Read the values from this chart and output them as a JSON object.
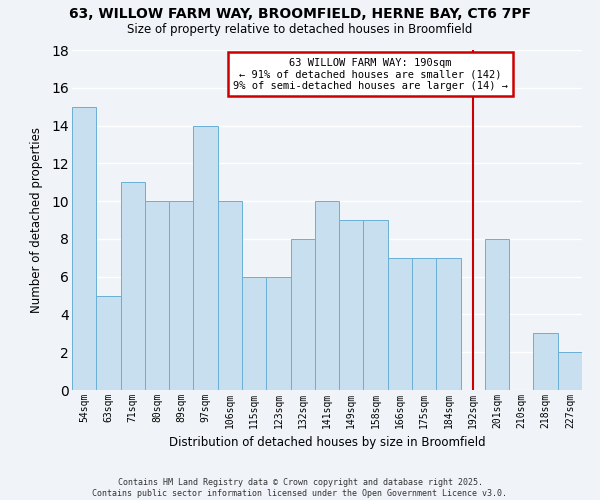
{
  "title_line1": "63, WILLOW FARM WAY, BROOMFIELD, HERNE BAY, CT6 7PF",
  "title_line2": "Size of property relative to detached houses in Broomfield",
  "xlabel": "Distribution of detached houses by size in Broomfield",
  "ylabel": "Number of detached properties",
  "bin_labels": [
    "54sqm",
    "63sqm",
    "71sqm",
    "80sqm",
    "89sqm",
    "97sqm",
    "106sqm",
    "115sqm",
    "123sqm",
    "132sqm",
    "141sqm",
    "149sqm",
    "158sqm",
    "166sqm",
    "175sqm",
    "184sqm",
    "192sqm",
    "201sqm",
    "210sqm",
    "218sqm",
    "227sqm"
  ],
  "bar_heights": [
    15,
    5,
    11,
    10,
    10,
    14,
    10,
    6,
    6,
    8,
    10,
    9,
    9,
    7,
    7,
    7,
    0,
    8,
    0,
    3,
    2
  ],
  "bar_color": "#c8dff0",
  "bar_edge_color": "#6aafd6",
  "ylim": [
    0,
    18
  ],
  "yticks": [
    0,
    2,
    4,
    6,
    8,
    10,
    12,
    14,
    16,
    18
  ],
  "annotation_title": "63 WILLOW FARM WAY: 190sqm",
  "annotation_line1": "← 91% of detached houses are smaller (142)",
  "annotation_line2": "9% of semi-detached houses are larger (14) →",
  "footer_line1": "Contains HM Land Registry data © Crown copyright and database right 2025.",
  "footer_line2": "Contains public sector information licensed under the Open Government Licence v3.0.",
  "background_color": "#f0f4f8",
  "grid_color": "#ffffff",
  "annotation_box_color": "#cc0000",
  "property_line_color": "#cc0000",
  "property_line_x": 16.0
}
